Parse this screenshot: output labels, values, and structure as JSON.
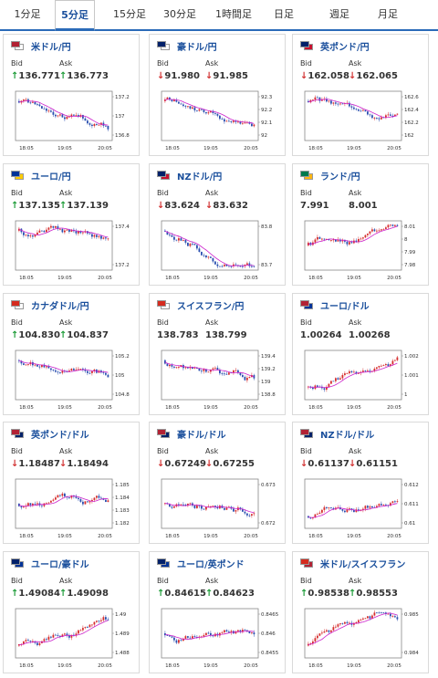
{
  "tabs": [
    {
      "label": "1分足",
      "active": false
    },
    {
      "label": "5分足",
      "active": true
    },
    {
      "label": "15分足",
      "active": false
    },
    {
      "label": "30分足",
      "active": false
    },
    {
      "label": "1時間足",
      "active": false
    },
    {
      "label": "日足",
      "active": false
    },
    {
      "label": "週足",
      "active": false
    },
    {
      "label": "月足",
      "active": false
    }
  ],
  "labels": {
    "bid": "Bid",
    "ask": "Ask"
  },
  "x_ticks_main": [
    "18:05",
    "19:05",
    "20:05"
  ],
  "x_ticks_alt": [
    "18:05",
    "19:05",
    "20:05"
  ],
  "colors": {
    "up": "#1f9d3a",
    "down": "#d23232",
    "link": "#1a4f9c",
    "bull_candle": "#d62e2e",
    "bear_candle": "#2a4fb0",
    "ma_line": "#cc22cc"
  },
  "cards": [
    {
      "pair": "米ドル/円",
      "flag": [
        "#b22234",
        "#ffffff"
      ],
      "bid": "136.771",
      "ask": "136.773",
      "dir": "up",
      "chart_data": {
        "type": "candlestick",
        "y_ticks": [
          "137.2",
          "137",
          "136.8"
        ],
        "x_ticks": [
          "18:05",
          "19:05",
          "20:05"
        ],
        "trend": "down"
      }
    },
    {
      "pair": "豪ドル/円",
      "flag": [
        "#012169",
        "#ffffff"
      ],
      "bid": "91.980",
      "ask": "91.985",
      "dir": "down",
      "chart_data": {
        "type": "candlestick",
        "y_ticks": [
          "92.3",
          "92.2",
          "92.1",
          "92"
        ],
        "x_ticks": [
          "18:05",
          "19:05",
          "20:05"
        ],
        "trend": "down"
      }
    },
    {
      "pair": "英ポンド/円",
      "flag": [
        "#012169",
        "#c8102e"
      ],
      "bid": "162.058",
      "ask": "162.065",
      "dir": "down",
      "chart_data": {
        "type": "candlestick",
        "y_ticks": [
          "162.6",
          "162.4",
          "162.2",
          "162"
        ],
        "x_ticks": [
          "18:05",
          "19:05",
          "20:05"
        ],
        "trend": "down"
      }
    },
    {
      "pair": "ユーロ/円",
      "flag": [
        "#003399",
        "#ffcc00"
      ],
      "bid": "137.135",
      "ask": "137.139",
      "dir": "up",
      "chart_data": {
        "type": "candlestick",
        "y_ticks": [
          "137.4",
          "137.2"
        ],
        "x_ticks": [
          "18:05",
          "19:05",
          "20:05"
        ],
        "trend": "down"
      }
    },
    {
      "pair": "NZドル/円",
      "flag": [
        "#012169",
        "#c8102e"
      ],
      "bid": "83.624",
      "ask": "83.632",
      "dir": "down",
      "chart_data": {
        "type": "candlestick",
        "y_ticks": [
          "83.8",
          "83.7"
        ],
        "x_ticks": [
          "18:05",
          "19:05",
          "20:05"
        ],
        "trend": "down"
      }
    },
    {
      "pair": "ランド/円",
      "flag": [
        "#007a4d",
        "#ffb612"
      ],
      "bid": "7.991",
      "ask": "8.001",
      "dir": "none",
      "chart_data": {
        "type": "candlestick",
        "y_ticks": [
          "8.01",
          "8",
          "7.99",
          "7.98"
        ],
        "x_ticks": [
          "18:05",
          "19:05",
          "20:05"
        ],
        "trend": "flat"
      }
    },
    {
      "pair": "カナダドル/円",
      "flag": [
        "#d52b1e",
        "#ffffff"
      ],
      "bid": "104.830",
      "ask": "104.837",
      "dir": "up",
      "chart_data": {
        "type": "candlestick",
        "y_ticks": [
          "105.2",
          "105",
          "104.8"
        ],
        "x_ticks": [
          "18:05",
          "19:05",
          "20:05"
        ],
        "trend": "down"
      }
    },
    {
      "pair": "スイスフラン/円",
      "flag": [
        "#d52b1e",
        "#ffffff"
      ],
      "bid": "138.783",
      "ask": "138.799",
      "dir": "none",
      "chart_data": {
        "type": "candlestick",
        "y_ticks": [
          "139.4",
          "139.2",
          "139",
          "138.8"
        ],
        "x_ticks": [
          "18:05",
          "19:05",
          "20:05"
        ],
        "trend": "down"
      }
    },
    {
      "pair": "ユーロ/ドル",
      "flag": [
        "#b22234",
        "#003399"
      ],
      "bid": "1.00264",
      "ask": "1.00268",
      "dir": "none",
      "chart_data": {
        "type": "candlestick",
        "y_ticks": [
          "1.002",
          "1.001",
          "1"
        ],
        "x_ticks": [
          "18:05",
          "19:05",
          "20:05"
        ],
        "trend": "up"
      }
    },
    {
      "pair": "英ポンド/ドル",
      "flag": [
        "#b22234",
        "#012169"
      ],
      "bid": "1.18487",
      "ask": "1.18494",
      "dir": "down",
      "chart_data": {
        "type": "candlestick",
        "y_ticks": [
          "1.185",
          "1.184",
          "1.183",
          "1.182"
        ],
        "x_ticks": [
          "18:05",
          "19:05",
          "20:05"
        ],
        "trend": "flat"
      }
    },
    {
      "pair": "豪ドル/ドル",
      "flag": [
        "#b22234",
        "#012169"
      ],
      "bid": "0.67249",
      "ask": "0.67255",
      "dir": "down",
      "chart_data": {
        "type": "candlestick",
        "y_ticks": [
          "0.673",
          "0.672"
        ],
        "x_ticks": [
          "18:05",
          "19:05",
          "20:05"
        ],
        "trend": "flat"
      }
    },
    {
      "pair": "NZドル/ドル",
      "flag": [
        "#b22234",
        "#012169"
      ],
      "bid": "0.61137",
      "ask": "0.61151",
      "dir": "down",
      "chart_data": {
        "type": "candlestick",
        "y_ticks": [
          "0.612",
          "0.611",
          "0.61"
        ],
        "x_ticks": [
          "18:05",
          "19:05",
          "20:05"
        ],
        "trend": "up"
      }
    },
    {
      "pair": "ユーロ/豪ドル",
      "flag": [
        "#012169",
        "#003399"
      ],
      "bid": "1.49084",
      "ask": "1.49098",
      "dir": "up",
      "chart_data": {
        "type": "candlestick",
        "y_ticks": [
          "1.49",
          "1.489",
          "1.488"
        ],
        "x_ticks": [
          "18:05",
          "19:05",
          "20:05"
        ],
        "trend": "up"
      }
    },
    {
      "pair": "ユーロ/英ポンド",
      "flag": [
        "#012169",
        "#003399"
      ],
      "bid": "0.84615",
      "ask": "0.84623",
      "dir": "up",
      "chart_data": {
        "type": "candlestick",
        "y_ticks": [
          "0.8465",
          "0.846",
          "0.8455"
        ],
        "x_ticks": [
          "18:05",
          "19:05",
          "20:05"
        ],
        "trend": "flat"
      }
    },
    {
      "pair": "米ドル/スイスフラン",
      "flag": [
        "#d52b1e",
        "#b22234"
      ],
      "bid": "0.98538",
      "ask": "0.98553",
      "dir": "up",
      "chart_data": {
        "type": "candlestick",
        "y_ticks": [
          "0.985",
          "0.984"
        ],
        "x_ticks": [
          "18:05",
          "19:05",
          "20:05"
        ],
        "trend": "up"
      }
    }
  ]
}
